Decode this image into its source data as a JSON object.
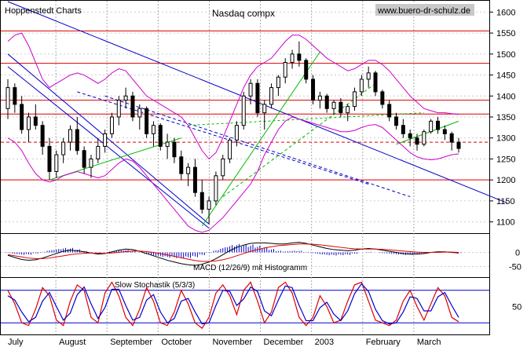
{
  "chart_data": {
    "type": "candlestick",
    "source_label": "Hoppenstedt Charts",
    "title": "Nasdaq compx",
    "watermark": "www.buero-dr-schulz.de",
    "x_labels": [
      "July",
      "August",
      "September",
      "October",
      "November",
      "December",
      "2003",
      "February",
      "March"
    ],
    "price_axis": {
      "ticks": [
        1100,
        1150,
        1200,
        1250,
        1300,
        1350,
        1400,
        1450,
        1500,
        1550,
        1600
      ],
      "ylim": [
        1075,
        1625
      ]
    },
    "horizontal_levels": [
      1200,
      1357,
      1390,
      1478,
      1555
    ],
    "dashed_level": 1290,
    "price_series": [
      [
        1370,
        1440,
        1345,
        1420
      ],
      [
        1420,
        1430,
        1360,
        1380
      ],
      [
        1380,
        1400,
        1310,
        1320
      ],
      [
        1320,
        1360,
        1290,
        1350
      ],
      [
        1350,
        1380,
        1320,
        1330
      ],
      [
        1330,
        1340,
        1260,
        1280
      ],
      [
        1280,
        1300,
        1200,
        1220
      ],
      [
        1220,
        1270,
        1205,
        1260
      ],
      [
        1260,
        1300,
        1240,
        1290
      ],
      [
        1290,
        1330,
        1270,
        1320
      ],
      [
        1320,
        1350,
        1260,
        1270
      ],
      [
        1270,
        1280,
        1215,
        1230
      ],
      [
        1230,
        1260,
        1205,
        1250
      ],
      [
        1250,
        1300,
        1240,
        1280
      ],
      [
        1280,
        1320,
        1265,
        1310
      ],
      [
        1310,
        1360,
        1300,
        1350
      ],
      [
        1350,
        1400,
        1330,
        1390
      ],
      [
        1390,
        1420,
        1370,
        1400
      ],
      [
        1400,
        1410,
        1340,
        1350
      ],
      [
        1350,
        1380,
        1320,
        1370
      ],
      [
        1370,
        1375,
        1300,
        1310
      ],
      [
        1310,
        1340,
        1280,
        1330
      ],
      [
        1330,
        1335,
        1270,
        1280
      ],
      [
        1280,
        1310,
        1250,
        1290
      ],
      [
        1290,
        1300,
        1240,
        1255
      ],
      [
        1255,
        1270,
        1200,
        1215
      ],
      [
        1215,
        1240,
        1185,
        1230
      ],
      [
        1230,
        1250,
        1160,
        1170
      ],
      [
        1170,
        1200,
        1120,
        1130
      ],
      [
        1130,
        1160,
        1095,
        1150
      ],
      [
        1150,
        1220,
        1140,
        1210
      ],
      [
        1210,
        1260,
        1200,
        1250
      ],
      [
        1250,
        1300,
        1240,
        1295
      ],
      [
        1295,
        1340,
        1280,
        1330
      ],
      [
        1330,
        1410,
        1320,
        1400
      ],
      [
        1400,
        1440,
        1380,
        1430
      ],
      [
        1430,
        1440,
        1350,
        1360
      ],
      [
        1360,
        1390,
        1320,
        1380
      ],
      [
        1380,
        1430,
        1370,
        1420
      ],
      [
        1420,
        1450,
        1400,
        1445
      ],
      [
        1445,
        1490,
        1430,
        1480
      ],
      [
        1480,
        1510,
        1465,
        1500
      ],
      [
        1500,
        1530,
        1470,
        1485
      ],
      [
        1485,
        1490,
        1430,
        1440
      ],
      [
        1440,
        1450,
        1380,
        1390
      ],
      [
        1390,
        1410,
        1370,
        1400
      ],
      [
        1400,
        1405,
        1360,
        1370
      ],
      [
        1370,
        1390,
        1355,
        1385
      ],
      [
        1385,
        1395,
        1350,
        1360
      ],
      [
        1360,
        1380,
        1340,
        1375
      ],
      [
        1375,
        1420,
        1365,
        1410
      ],
      [
        1410,
        1450,
        1400,
        1440
      ],
      [
        1440,
        1470,
        1420,
        1455
      ],
      [
        1455,
        1460,
        1400,
        1410
      ],
      [
        1410,
        1415,
        1370,
        1380
      ],
      [
        1380,
        1390,
        1340,
        1350
      ],
      [
        1350,
        1360,
        1320,
        1330
      ],
      [
        1330,
        1345,
        1300,
        1310
      ],
      [
        1310,
        1320,
        1280,
        1300
      ],
      [
        1300,
        1310,
        1270,
        1285
      ],
      [
        1285,
        1320,
        1280,
        1315
      ],
      [
        1315,
        1345,
        1310,
        1340
      ],
      [
        1340,
        1350,
        1310,
        1320
      ],
      [
        1320,
        1330,
        1295,
        1310
      ],
      [
        1310,
        1315,
        1270,
        1290
      ],
      [
        1290,
        1300,
        1265,
        1275
      ]
    ],
    "bollinger": {
      "upper": [
        1530,
        1545,
        1550,
        1520,
        1480,
        1440,
        1420,
        1430,
        1440,
        1450,
        1455,
        1450,
        1440,
        1430,
        1440,
        1455,
        1465,
        1460,
        1440,
        1420,
        1400,
        1390,
        1380,
        1370,
        1360,
        1350,
        1330,
        1300,
        1270,
        1250,
        1265,
        1300,
        1340,
        1380,
        1420,
        1450,
        1470,
        1480,
        1490,
        1510,
        1530,
        1545,
        1545,
        1535,
        1520,
        1505,
        1490,
        1480,
        1470,
        1460,
        1465,
        1475,
        1485,
        1485,
        1475,
        1460,
        1440,
        1420,
        1400,
        1385,
        1370,
        1365,
        1360,
        1360,
        1358,
        1356
      ],
      "lower": [
        1300,
        1290,
        1270,
        1240,
        1215,
        1200,
        1195,
        1200,
        1210,
        1215,
        1220,
        1215,
        1210,
        1205,
        1210,
        1225,
        1240,
        1250,
        1245,
        1230,
        1210,
        1190,
        1170,
        1150,
        1130,
        1110,
        1090,
        1080,
        1075,
        1080,
        1095,
        1110,
        1130,
        1150,
        1170,
        1190,
        1220,
        1260,
        1290,
        1320,
        1340,
        1350,
        1345,
        1340,
        1335,
        1330,
        1325,
        1320,
        1315,
        1315,
        1318,
        1325,
        1330,
        1332,
        1325,
        1310,
        1295,
        1280,
        1265,
        1255,
        1250,
        1248,
        1250,
        1255,
        1260,
        1262
      ]
    },
    "macd": {
      "label": "MACD (12/26/9) mit Histogramm",
      "ticks": [
        0,
        -50
      ],
      "ylim": [
        -85,
        60
      ],
      "macd": [
        -10,
        -18,
        -25,
        -28,
        -26,
        -20,
        -12,
        -4,
        4,
        8,
        6,
        2,
        -2,
        -6,
        -4,
        2,
        8,
        12,
        10,
        4,
        -4,
        -12,
        -20,
        -28,
        -34,
        -40,
        -44,
        -46,
        -42,
        -34,
        -22,
        -8,
        6,
        18,
        26,
        32,
        34,
        34,
        32,
        30,
        30,
        34,
        36,
        32,
        26,
        20,
        14,
        10,
        8,
        6,
        8,
        12,
        14,
        12,
        8,
        4,
        0,
        -4,
        -6,
        -6,
        -4,
        0,
        2,
        2,
        0,
        -2
      ],
      "signal": [
        -8,
        -12,
        -16,
        -20,
        -22,
        -22,
        -20,
        -16,
        -12,
        -8,
        -5,
        -3,
        -2,
        -3,
        -3,
        -2,
        0,
        3,
        5,
        5,
        3,
        0,
        -4,
        -9,
        -14,
        -19,
        -24,
        -29,
        -32,
        -32,
        -30,
        -26,
        -20,
        -12,
        -4,
        4,
        10,
        16,
        20,
        24,
        26,
        28,
        30,
        30,
        29,
        27,
        24,
        21,
        18,
        15,
        13,
        12,
        12,
        12,
        11,
        9,
        7,
        5,
        3,
        1,
        0,
        0,
        0,
        1,
        1,
        0
      ]
    },
    "stochastic": {
      "label": "Slow Stochastik (5/3/3)",
      "ticks": [
        50
      ],
      "lines": [
        80,
        20
      ],
      "ylim": [
        0,
        100
      ],
      "k": [
        80,
        55,
        20,
        15,
        45,
        85,
        70,
        25,
        15,
        60,
        90,
        80,
        30,
        20,
        75,
        95,
        70,
        30,
        15,
        45,
        85,
        60,
        20,
        15,
        40,
        80,
        55,
        20,
        10,
        30,
        75,
        90,
        70,
        35,
        80,
        95,
        60,
        20,
        40,
        85,
        95,
        75,
        30,
        15,
        30,
        70,
        50,
        20,
        25,
        60,
        90,
        95,
        60,
        25,
        20,
        15,
        25,
        60,
        80,
        50,
        25,
        55,
        85,
        70,
        30,
        22
      ],
      "d": [
        70,
        62,
        40,
        22,
        30,
        60,
        76,
        50,
        25,
        38,
        72,
        86,
        55,
        28,
        48,
        82,
        82,
        52,
        25,
        30,
        62,
        72,
        40,
        20,
        28,
        60,
        65,
        40,
        18,
        20,
        52,
        80,
        78,
        52,
        64,
        86,
        78,
        42,
        33,
        62,
        88,
        85,
        52,
        24,
        24,
        48,
        58,
        36,
        24,
        42,
        74,
        92,
        78,
        45,
        24,
        18,
        20,
        40,
        68,
        65,
        42,
        42,
        68,
        76,
        52,
        30
      ]
    }
  }
}
